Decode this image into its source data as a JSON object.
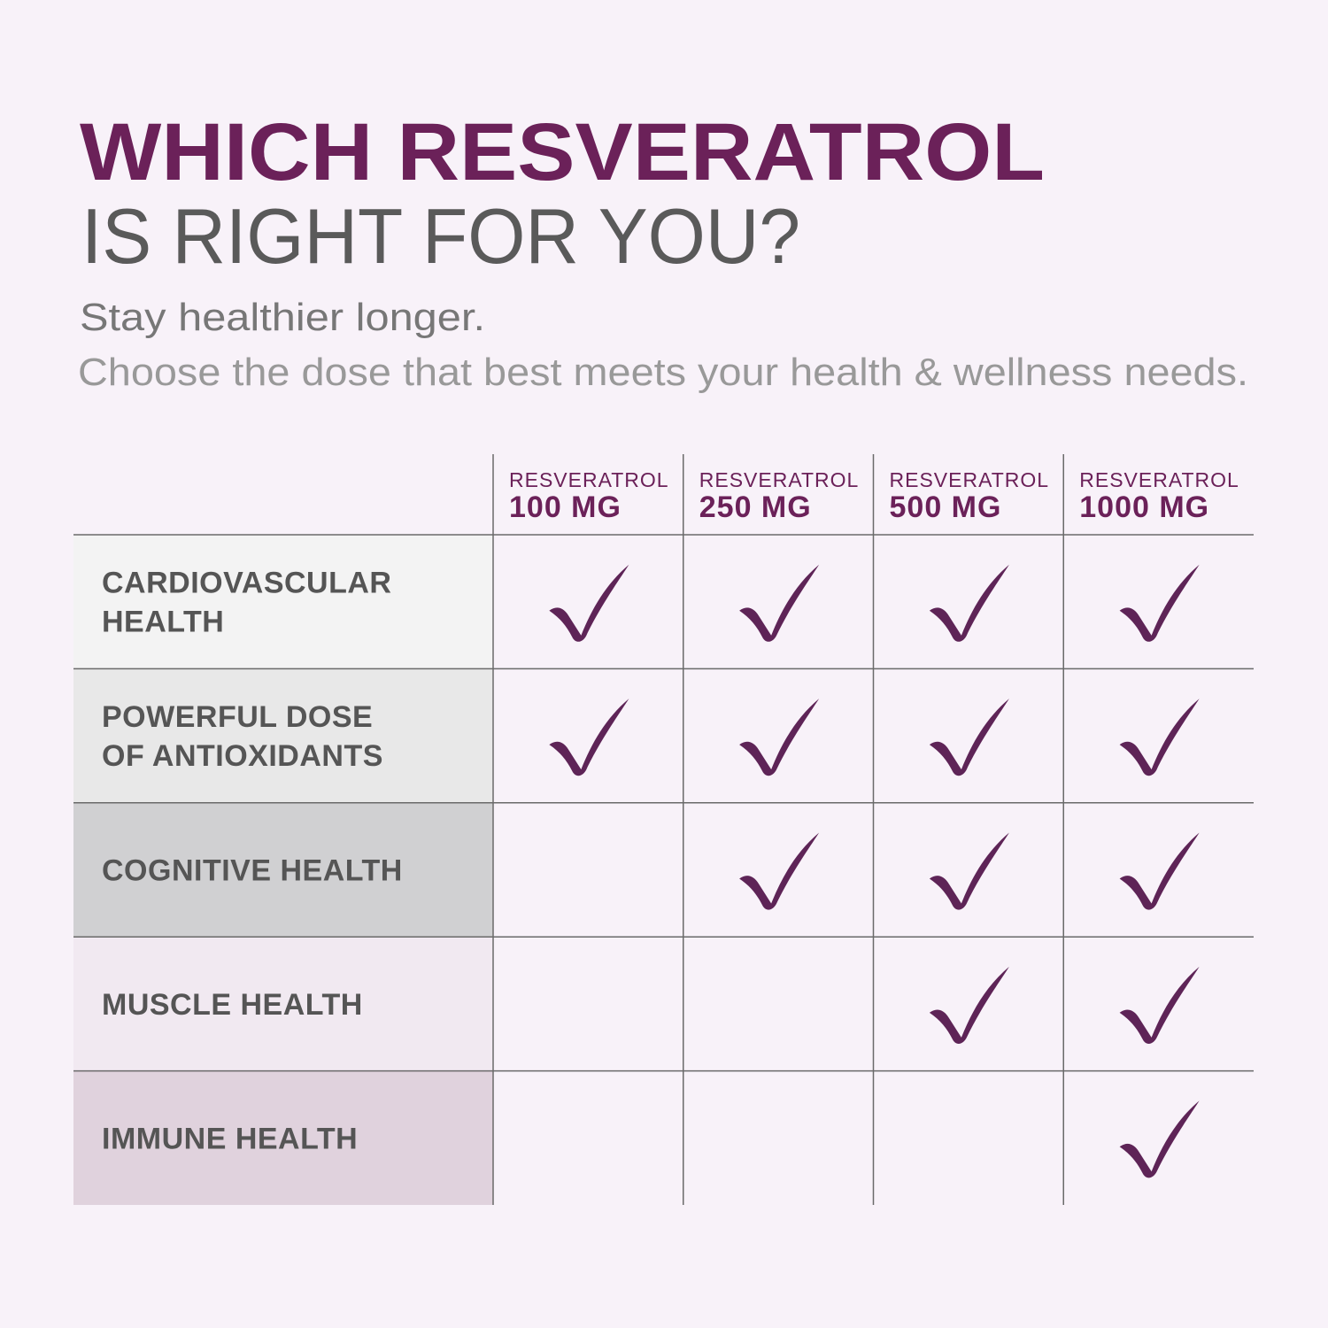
{
  "header": {
    "title": "WHICH RESVERATROL",
    "title_line2": "IS RIGHT FOR YOU?",
    "subtitle": "Stay healthier longer.",
    "description": "Choose the dose that best meets your health & wellness needs."
  },
  "table": {
    "columns": [
      [
        "RESVERATROL",
        "100 MG"
      ],
      [
        "RESVERATROL",
        "250 MG"
      ],
      [
        "RESVERATROL",
        "500 MG"
      ],
      [
        "RESVERATROL",
        "1000 MG"
      ]
    ],
    "rows": [
      {
        "label": [
          "CARDIOVASCULAR",
          "HEALTH"
        ],
        "checks": [
          true,
          true,
          true,
          true
        ]
      },
      {
        "label": [
          "POWERFUL DOSE",
          "OF ANTIOXIDANTS"
        ],
        "checks": [
          true,
          true,
          true,
          true
        ]
      },
      {
        "label": [
          "COGNITIVE HEALTH"
        ],
        "checks": [
          false,
          true,
          true,
          true
        ]
      },
      {
        "label": [
          "MUSCLE HEALTH"
        ],
        "checks": [
          false,
          false,
          true,
          true
        ]
      },
      {
        "label": [
          "IMMUNE HEALTH"
        ],
        "checks": [
          false,
          false,
          false,
          true
        ]
      }
    ]
  }
}
